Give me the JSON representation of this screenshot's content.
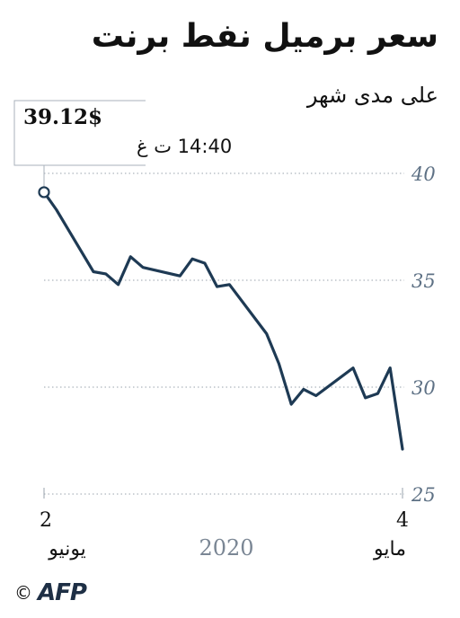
{
  "chart_data": {
    "type": "line",
    "title": "سعر برميل نفط برنت",
    "subtitle": "على مدى شهر",
    "ylim": [
      25,
      41
    ],
    "yticks": [
      25,
      30,
      35,
      40
    ],
    "ytick_labels": [
      "25",
      "30",
      "35",
      "40"
    ],
    "x": [
      "2020-05-04",
      "2020-05-05",
      "2020-05-06",
      "2020-05-07",
      "2020-05-08",
      "2020-05-11",
      "2020-05-12",
      "2020-05-13",
      "2020-05-14",
      "2020-05-15",
      "2020-05-18",
      "2020-05-19",
      "2020-05-20",
      "2020-05-21",
      "2020-05-22",
      "2020-05-25",
      "2020-05-26",
      "2020-05-27",
      "2020-05-28",
      "2020-05-29",
      "2020-06-01",
      "2020-06-02"
    ],
    "values": [
      27.1,
      30.9,
      29.7,
      29.5,
      30.9,
      29.6,
      29.9,
      29.2,
      31.1,
      32.5,
      34.8,
      34.7,
      35.8,
      36.0,
      35.2,
      35.6,
      36.1,
      34.8,
      35.3,
      35.4,
      38.3,
      39.12
    ],
    "x_labels": {
      "start_day": "4",
      "start_month": "مايو",
      "end_day": "2",
      "end_month": "يونيو",
      "year": "2020"
    },
    "last_value_callout": {
      "value": "39.12$",
      "time": "14:40 ت غ"
    },
    "line_color": "#1e3a54",
    "grid": "horizontal-dotted",
    "axis_label_color": "#5e7185"
  },
  "footer": {
    "copyright": "©",
    "logo": "AFP"
  }
}
